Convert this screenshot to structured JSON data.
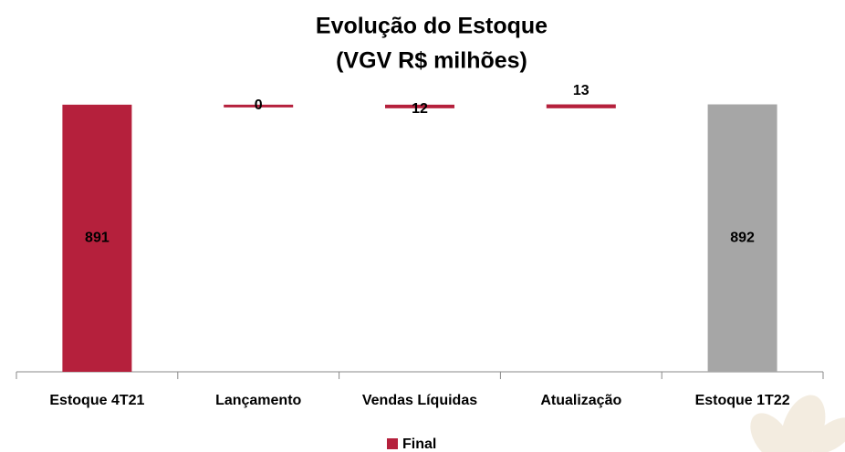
{
  "chart_data": {
    "type": "waterfall",
    "title": [
      "Evolução do Estoque",
      "(VGV R$ milhões)"
    ],
    "categories": [
      "Estoque 4T21",
      "Lançamento",
      "Vendas Líquidas",
      "Atualização",
      "Estoque 1T22"
    ],
    "values": [
      891,
      0,
      -12,
      13,
      892
    ],
    "value_labels": [
      "891",
      "0",
      "12",
      "13",
      "892"
    ],
    "total_indices": [
      0,
      4
    ],
    "colors": [
      "#b5203c",
      "#b5203c",
      "#b5203c",
      "#b5203c",
      "#a6a6a6"
    ],
    "legend": {
      "name": "Final",
      "color": "#b5203c"
    },
    "ylim": [
      0,
      1000
    ]
  }
}
